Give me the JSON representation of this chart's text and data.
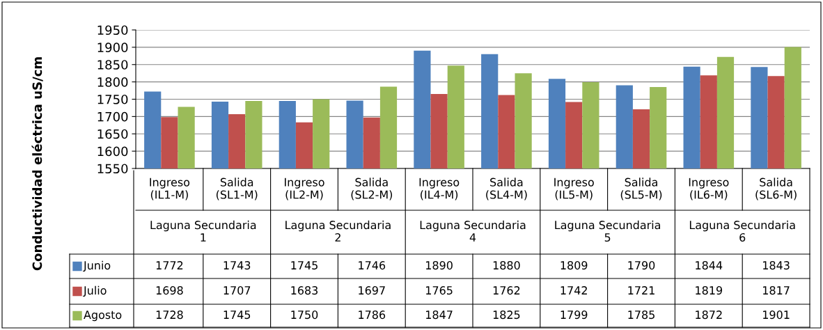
{
  "chart_data": {
    "type": "bar",
    "ylabel": "Conductividad eléctrica uS/cm",
    "categories": [
      "Ingreso (IL1-M)",
      "Salida (SL1-M)",
      "Ingreso (IL2-M)",
      "Salida (SL2-M)",
      "Ingreso (IL4-M)",
      "Salida (SL4-M)",
      "Ingreso (IL5-M)",
      "Salida (SL5-M)",
      "Ingreso (IL6-M)",
      "Salida (SL6-M)"
    ],
    "annotations": [
      "Laguna Secundaria 1",
      "Laguna Secundaria 2",
      "Laguna Secundaria 4",
      "Laguna Secundaria 5",
      "Laguna Secundaria 6"
    ],
    "series": [
      {
        "name": "Junio",
        "color": "#4f81bd",
        "values": [
          1772,
          1743,
          1745,
          1746,
          1890,
          1880,
          1809,
          1790,
          1844,
          1843
        ]
      },
      {
        "name": "Julio",
        "color": "#c0504d",
        "values": [
          1698,
          1707,
          1683,
          1697,
          1765,
          1762,
          1742,
          1721,
          1819,
          1817
        ]
      },
      {
        "name": "Agosto",
        "color": "#9bbb59",
        "values": [
          1728,
          1745,
          1750,
          1786,
          1847,
          1825,
          1799,
          1785,
          1872,
          1901
        ]
      }
    ],
    "ylim": [
      1550,
      1950
    ],
    "yticks": [
      1550,
      1600,
      1650,
      1700,
      1750,
      1800,
      1850,
      1900,
      1950
    ],
    "grid": "y",
    "legend": "bottom",
    "data_labels": true
  }
}
